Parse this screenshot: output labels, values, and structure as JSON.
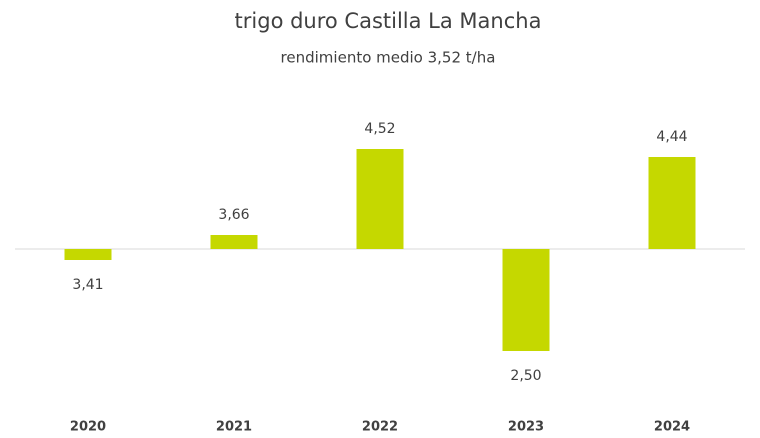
{
  "chart_data": {
    "type": "bar",
    "title": "trigo duro Castilla La Mancha",
    "subtitle": "rendimiento medio 3,52 t/ha",
    "baseline": 3.52,
    "categories": [
      "2020",
      "2021",
      "2022",
      "2023",
      "2024"
    ],
    "values": [
      3.41,
      3.66,
      4.52,
      2.5,
      4.44
    ],
    "value_labels": [
      "3,41",
      "3,66",
      "4,52",
      "2,50",
      "4,44"
    ],
    "color": "#c5d800"
  }
}
